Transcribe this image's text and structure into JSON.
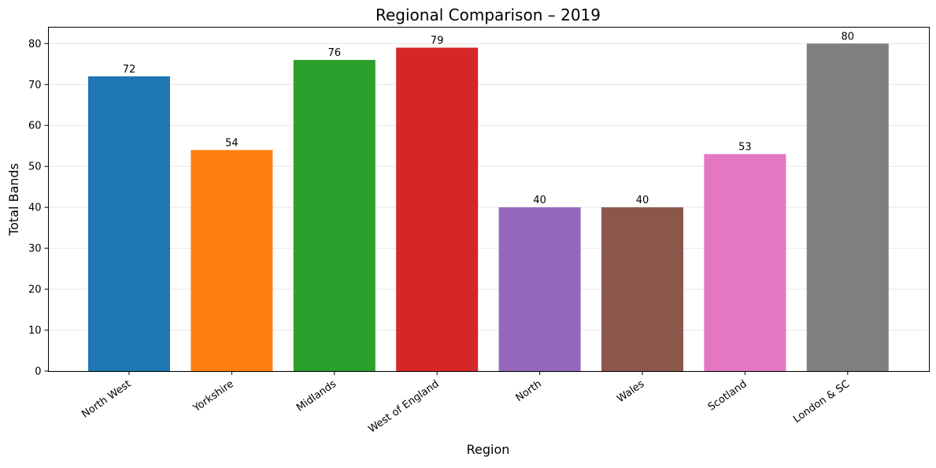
{
  "chart_data": {
    "type": "bar",
    "title": "Regional Comparison – 2019",
    "xlabel": "Region",
    "ylabel": "Total Bands",
    "categories": [
      "North West",
      "Yorkshire",
      "Midlands",
      "West of England",
      "North",
      "Wales",
      "Scotland",
      "London & SC"
    ],
    "values": [
      72,
      54,
      76,
      79,
      40,
      40,
      53,
      80
    ],
    "colors": [
      "#1f77b4",
      "#ff7f0e",
      "#2ca02c",
      "#d62728",
      "#9467bd",
      "#8c564b",
      "#e377c2",
      "#7f7f7f"
    ],
    "ylim": [
      0,
      84
    ],
    "yticks": [
      0,
      10,
      20,
      30,
      40,
      50,
      60,
      70,
      80
    ],
    "grid": true,
    "data_labels": true
  }
}
